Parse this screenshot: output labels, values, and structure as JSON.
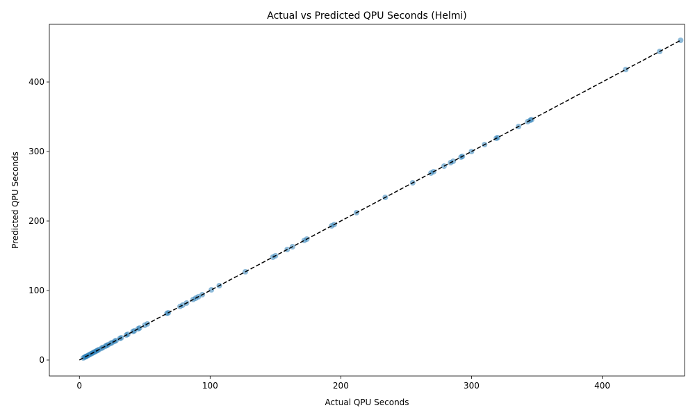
{
  "chart_data": {
    "type": "scatter",
    "title": "Actual vs Predicted QPU Seconds (Helmi)",
    "xlabel": "Actual QPU Seconds",
    "ylabel": "Predicted QPU Seconds",
    "xlim": [
      -23,
      463
    ],
    "ylim": [
      -23,
      483
    ],
    "xticks": [
      0,
      100,
      200,
      300,
      400
    ],
    "yticks": [
      0,
      100,
      200,
      300,
      400
    ],
    "grid": false,
    "point_color": "#1f77b4",
    "point_alpha": 0.5,
    "reference_line": {
      "style": "dashed",
      "color": "#000000",
      "from": [
        0,
        0
      ],
      "to": [
        460,
        460
      ]
    },
    "series": [
      {
        "x": [
          3,
          4,
          5,
          5,
          6,
          7,
          8,
          9,
          10,
          11,
          12,
          13,
          14,
          15,
          17,
          18,
          20,
          21,
          22,
          24,
          25,
          27,
          28,
          31,
          32,
          36,
          37,
          41,
          42,
          45,
          46,
          50,
          52,
          67,
          68,
          77,
          79,
          82,
          87,
          89,
          91,
          94,
          101,
          107,
          127,
          148,
          150,
          159,
          163,
          172,
          174,
          193,
          195,
          212,
          234,
          255,
          269,
          271,
          279,
          284,
          286,
          292,
          293,
          300,
          310,
          319,
          320,
          336,
          343,
          345,
          346,
          418,
          444,
          460
        ],
        "y": [
          3,
          4,
          5,
          5,
          6,
          7,
          8,
          9,
          10,
          11,
          12,
          13,
          14,
          15,
          17,
          18,
          20,
          21,
          22,
          24,
          25,
          27,
          28,
          31,
          32,
          36,
          37,
          41,
          42,
          45,
          46,
          50,
          52,
          67,
          68,
          77,
          79,
          82,
          87,
          89,
          91,
          94,
          101,
          107,
          127,
          148,
          150,
          159,
          163,
          172,
          174,
          193,
          195,
          212,
          234,
          255,
          269,
          271,
          279,
          284,
          286,
          292,
          293,
          300,
          310,
          319,
          320,
          336,
          343,
          345,
          346,
          418,
          444,
          460
        ]
      }
    ]
  }
}
